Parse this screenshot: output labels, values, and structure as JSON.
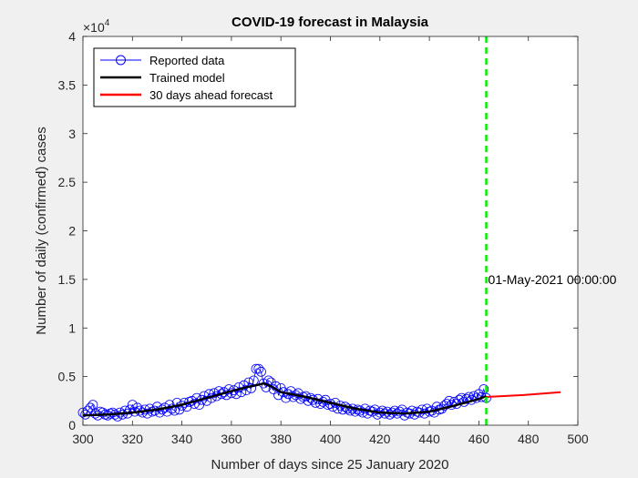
{
  "figure": {
    "background": "#f0f0f0"
  },
  "chart_data": {
    "type": "line",
    "title": "COVID-19 forecast in Malaysia",
    "xlabel": "Number of days since 25 January 2020",
    "ylabel": "Number of daily (confirmed) cases",
    "xlim": [
      300,
      500
    ],
    "ylim": [
      0,
      40000
    ],
    "x_ticks": [
      "300",
      "320",
      "340",
      "360",
      "380",
      "400",
      "420",
      "440",
      "460",
      "480",
      "500"
    ],
    "y_ticks": [
      "0",
      "0.5",
      "1",
      "1.5",
      "2",
      "2.5",
      "3",
      "3.5",
      "4"
    ],
    "y_exponent_prefix": "×10",
    "y_exponent_power": "4",
    "grid": false,
    "legend_position": "top-left",
    "legend": [
      {
        "label": "Reported data",
        "color": "#0000ff",
        "style": "line-circle"
      },
      {
        "label": "Trained model",
        "color": "#000000",
        "style": "line"
      },
      {
        "label": "30 days ahead forecast",
        "color": "#ff0000",
        "style": "line"
      }
    ],
    "vline": {
      "x": 463,
      "label": "01-May-2021 00:00:00",
      "label_y": 15000,
      "color": "#00ee00"
    },
    "series": [
      {
        "name": "Reported data",
        "color": "#0000ff",
        "x": [
          300,
          301,
          302,
          303,
          304,
          305,
          306,
          307,
          308,
          309,
          310,
          311,
          312,
          313,
          314,
          315,
          316,
          317,
          318,
          319,
          320,
          321,
          322,
          323,
          324,
          325,
          326,
          327,
          328,
          329,
          330,
          331,
          332,
          333,
          334,
          335,
          336,
          337,
          338,
          339,
          340,
          341,
          342,
          343,
          344,
          345,
          346,
          347,
          348,
          349,
          350,
          351,
          352,
          353,
          354,
          355,
          356,
          357,
          358,
          359,
          360,
          361,
          362,
          363,
          364,
          365,
          366,
          367,
          368,
          369,
          370,
          371,
          372,
          373,
          374,
          375,
          376,
          377,
          378,
          379,
          380,
          381,
          382,
          383,
          384,
          385,
          386,
          387,
          388,
          389,
          390,
          391,
          392,
          393,
          394,
          395,
          396,
          397,
          398,
          399,
          400,
          401,
          402,
          403,
          404,
          405,
          406,
          407,
          408,
          409,
          410,
          411,
          412,
          413,
          414,
          415,
          416,
          417,
          418,
          419,
          420,
          421,
          422,
          423,
          424,
          425,
          426,
          427,
          428,
          429,
          430,
          431,
          432,
          433,
          434,
          435,
          436,
          437,
          438,
          439,
          440,
          441,
          442,
          443,
          444,
          445,
          446,
          447,
          448,
          449,
          450,
          451,
          452,
          453,
          454,
          455,
          456,
          457,
          458,
          459,
          460,
          461,
          462,
          463
        ],
        "y": [
          1300,
          1100,
          1500,
          1800,
          2100,
          1200,
          1000,
          1400,
          1300,
          1100,
          1000,
          1200,
          1300,
          1100,
          900,
          1300,
          1100,
          1500,
          1200,
          1600,
          2100,
          1400,
          1800,
          1500,
          1300,
          1600,
          1200,
          1700,
          1400,
          1500,
          1900,
          1300,
          1600,
          1800,
          1400,
          2100,
          1700,
          1500,
          2300,
          1600,
          2000,
          2300,
          1900,
          2400,
          2500,
          2200,
          2800,
          2100,
          2600,
          3000,
          2500,
          3200,
          2800,
          3300,
          3000,
          3500,
          3200,
          3400,
          3100,
          3700,
          3300,
          3600,
          3200,
          3900,
          3400,
          4100,
          3600,
          4400,
          3800,
          4600,
          5800,
          5800,
          5500,
          4300,
          3900,
          4600,
          4400,
          3700,
          4000,
          3100,
          3800,
          3400,
          2800,
          3200,
          3500,
          2900,
          3100,
          3300,
          2700,
          2900,
          3000,
          2500,
          2800,
          2600,
          2300,
          2700,
          2200,
          2400,
          2600,
          2100,
          2200,
          1900,
          2300,
          1700,
          2000,
          1600,
          1900,
          1700,
          1500,
          1700,
          1400,
          1600,
          1500,
          1300,
          1700,
          1200,
          1500,
          1400,
          1600,
          1100,
          1300,
          1500,
          1200,
          1400,
          1100,
          1300,
          1500,
          1200,
          1400,
          1600,
          1000,
          1300,
          1200,
          1500,
          1100,
          1400,
          1300,
          1600,
          1200,
          1700,
          1400,
          1500,
          1300,
          1900,
          1600,
          1700,
          2000,
          2200,
          2500,
          2100,
          2400,
          2200,
          2600,
          2800,
          2400,
          2700,
          2900,
          2600,
          3000,
          2800,
          3200,
          2900,
          3700,
          2800
        ]
      },
      {
        "name": "Trained model",
        "color": "#000000",
        "x": [
          300,
          310,
          320,
          330,
          340,
          350,
          360,
          366,
          370,
          373,
          376,
          380,
          390,
          400,
          410,
          420,
          430,
          440,
          450,
          460,
          463
        ],
        "y": [
          1000,
          1100,
          1300,
          1600,
          2100,
          2800,
          3500,
          3900,
          4100,
          4300,
          4000,
          3400,
          2900,
          2300,
          1700,
          1300,
          1200,
          1400,
          2000,
          2700,
          3000
        ]
      },
      {
        "name": "30 days ahead forecast",
        "color": "#ff0000",
        "x": [
          463,
          478,
          493
        ],
        "y": [
          2900,
          3100,
          3400
        ]
      }
    ]
  }
}
